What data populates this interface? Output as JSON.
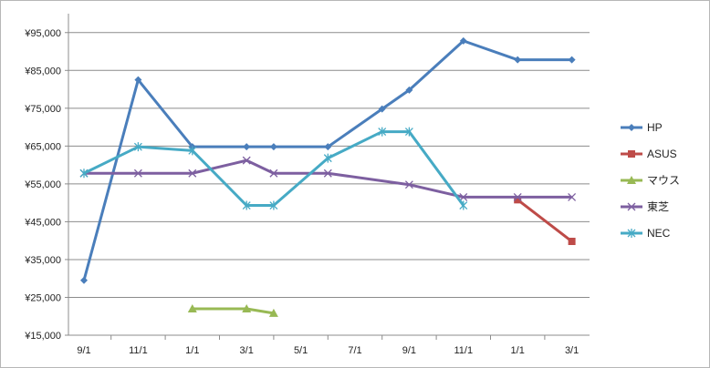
{
  "chart_data": {
    "type": "line",
    "title": "",
    "xlabel": "",
    "ylabel": "",
    "ylim": [
      15000,
      100000
    ],
    "y_ticks": [
      "¥15,000",
      "¥25,000",
      "¥35,000",
      "¥45,000",
      "¥55,000",
      "¥65,000",
      "¥75,000",
      "¥85,000",
      "¥95,000"
    ],
    "x_tick_labels": [
      "9/1",
      "11/1",
      "1/1",
      "3/1",
      "5/1",
      "7/1",
      "9/1",
      "11/1",
      "1/1",
      "3/1"
    ],
    "grid": true,
    "legend_position": "right",
    "series": [
      {
        "name": "HP",
        "color": "#4a7ebb",
        "marker": "diamond",
        "points": [
          [
            0,
            29500
          ],
          [
            1,
            82500
          ],
          [
            2,
            64800
          ],
          [
            3,
            64800
          ],
          [
            3.5,
            64800
          ],
          [
            4.5,
            64800
          ],
          [
            5.5,
            74800
          ],
          [
            6,
            79800
          ],
          [
            7,
            92800
          ],
          [
            8,
            87800
          ],
          [
            9,
            87800
          ]
        ]
      },
      {
        "name": "ASUS",
        "color": "#be4b48",
        "marker": "square",
        "points": [
          [
            8,
            50800
          ],
          [
            9,
            39800
          ]
        ]
      },
      {
        "name": "マウス",
        "color": "#98b954",
        "marker": "triangle",
        "points": [
          [
            2,
            21980
          ],
          [
            3,
            21980
          ],
          [
            3.5,
            20800
          ]
        ]
      },
      {
        "name": "東芝",
        "color": "#7d5fa0",
        "marker": "x",
        "points": [
          [
            0,
            57800
          ],
          [
            1,
            57800
          ],
          [
            2,
            57800
          ],
          [
            3,
            61200
          ],
          [
            3.5,
            57800
          ],
          [
            4.5,
            57800
          ],
          [
            6,
            54800
          ],
          [
            7,
            51500
          ],
          [
            8,
            51500
          ],
          [
            9,
            51500
          ]
        ]
      },
      {
        "name": "NEC",
        "color": "#46aac5",
        "marker": "star",
        "points": [
          [
            0,
            57800
          ],
          [
            1,
            64800
          ],
          [
            2,
            63800
          ],
          [
            3,
            49300
          ],
          [
            3.5,
            49300
          ],
          [
            4.5,
            61800
          ],
          [
            5.5,
            68800
          ],
          [
            6,
            68800
          ],
          [
            7,
            49300
          ]
        ]
      }
    ]
  }
}
